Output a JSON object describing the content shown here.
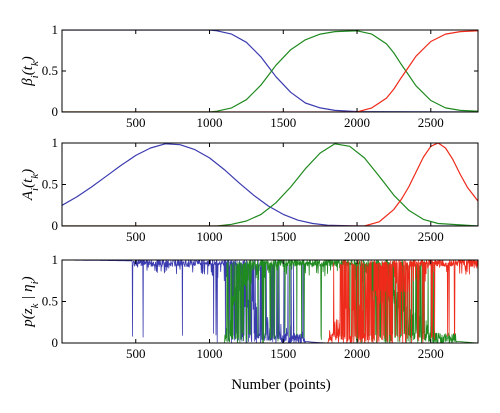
{
  "colors": {
    "series_1": "#3b3bb0",
    "series_2": "#1f8a1f",
    "series_3": "#ee2a1a"
  },
  "chart_data": [
    {
      "type": "line",
      "ylabel": "β_i(t_k)",
      "xlim": [
        0,
        2820
      ],
      "ylim": [
        0,
        1
      ],
      "xticks": [
        500,
        1000,
        1500,
        2000,
        2500
      ],
      "xtick_labels": [
        "500",
        "1000",
        "1500",
        "2000",
        "2500"
      ],
      "yticks": [
        0,
        0.5,
        1
      ],
      "ytick_labels": [
        "0",
        "0.5",
        "1"
      ],
      "series": [
        {
          "color": "series_1",
          "x": [
            0,
            1000,
            1050,
            1150,
            1250,
            1350,
            1400,
            1450,
            1550,
            1650,
            1750,
            1850,
            2000,
            2820
          ],
          "y": [
            1,
            1,
            0.99,
            0.95,
            0.85,
            0.67,
            0.55,
            0.43,
            0.24,
            0.11,
            0.05,
            0.02,
            0.005,
            0
          ]
        },
        {
          "color": "series_2",
          "x": [
            0,
            1000,
            1050,
            1150,
            1250,
            1350,
            1400,
            1450,
            1550,
            1650,
            1750,
            1850,
            2000,
            2100,
            2200,
            2250,
            2300,
            2350,
            2400,
            2500,
            2600,
            2700,
            2820
          ],
          "y": [
            0,
            0,
            0.01,
            0.05,
            0.15,
            0.33,
            0.45,
            0.57,
            0.76,
            0.88,
            0.95,
            0.98,
            0.99,
            0.95,
            0.83,
            0.72,
            0.58,
            0.45,
            0.32,
            0.14,
            0.05,
            0.02,
            0.01
          ]
        },
        {
          "color": "series_3",
          "x": [
            0,
            2000,
            2100,
            2200,
            2250,
            2300,
            2350,
            2400,
            2500,
            2600,
            2700,
            2820
          ],
          "y": [
            0,
            0,
            0.05,
            0.17,
            0.28,
            0.42,
            0.55,
            0.68,
            0.86,
            0.95,
            0.98,
            0.99
          ]
        }
      ]
    },
    {
      "type": "line",
      "ylabel": "A_i(t_k)",
      "xlim": [
        0,
        2820
      ],
      "ylim": [
        0,
        1
      ],
      "xticks": [
        500,
        1000,
        1500,
        2000,
        2500
      ],
      "xtick_labels": [
        "500",
        "1000",
        "1500",
        "2000",
        "2500"
      ],
      "yticks": [
        0,
        0.5,
        1
      ],
      "ytick_labels": [
        "0",
        "0.5",
        "1"
      ],
      "series": [
        {
          "color": "series_1",
          "x": [
            0,
            100,
            200,
            300,
            400,
            500,
            600,
            700,
            800,
            900,
            1000,
            1100,
            1200,
            1300,
            1400,
            1500,
            1600,
            1700,
            1800,
            2000,
            2820
          ],
          "y": [
            0.25,
            0.35,
            0.47,
            0.6,
            0.73,
            0.85,
            0.94,
            0.99,
            0.98,
            0.92,
            0.82,
            0.68,
            0.52,
            0.37,
            0.24,
            0.14,
            0.07,
            0.03,
            0.01,
            0,
            0
          ]
        },
        {
          "color": "series_2",
          "x": [
            0,
            1050,
            1150,
            1250,
            1350,
            1450,
            1550,
            1650,
            1750,
            1850,
            1950,
            2050,
            2150,
            2250,
            2350,
            2450,
            2550,
            2820
          ],
          "y": [
            0,
            0,
            0.02,
            0.06,
            0.14,
            0.28,
            0.47,
            0.69,
            0.88,
            0.99,
            0.96,
            0.82,
            0.6,
            0.37,
            0.19,
            0.08,
            0.03,
            0
          ]
        },
        {
          "color": "series_3",
          "x": [
            0,
            2050,
            2150,
            2250,
            2300,
            2350,
            2400,
            2450,
            2500,
            2550,
            2600,
            2650,
            2700,
            2750,
            2820
          ],
          "y": [
            0,
            0,
            0.05,
            0.2,
            0.32,
            0.47,
            0.65,
            0.83,
            0.96,
            1.0,
            0.94,
            0.8,
            0.62,
            0.46,
            0.3
          ]
        }
      ]
    },
    {
      "type": "line",
      "ylabel": "p(z_k | η_i)",
      "xlabel": "Number (points)",
      "xlim": [
        0,
        2820
      ],
      "ylim": [
        0,
        1
      ],
      "xticks": [
        500,
        1000,
        1500,
        2000,
        2500
      ],
      "xtick_labels": [
        "500",
        "1000",
        "1500",
        "2000",
        "2500"
      ],
      "yticks": [
        0,
        0.5,
        1
      ],
      "ytick_labels": [
        "0",
        "0.5",
        "1"
      ],
      "series": [
        {
          "color": "series_1",
          "x": [
            0,
            950,
            1000,
            1050,
            1100,
            1150,
            1200,
            1250,
            1300,
            1350,
            1400,
            1450,
            1500,
            1550,
            1600,
            1700,
            1800,
            1900,
            2000,
            2820
          ],
          "y": [
            1,
            0.98,
            0.96,
            0.93,
            0.9,
            0.82,
            0.7,
            0.55,
            0.42,
            0.3,
            0.22,
            0.15,
            0.1,
            0.06,
            0.03,
            0.01,
            0,
            0,
            0,
            0
          ]
        },
        {
          "color": "series_2",
          "x": [
            0,
            1100,
            1150,
            1200,
            1250,
            1300,
            1400,
            1500,
            1600,
            1700,
            1800,
            1900,
            2000,
            2100,
            2200,
            2300,
            2400,
            2500,
            2600,
            2820
          ],
          "y": [
            0,
            0,
            0.5,
            0.7,
            0.82,
            0.88,
            0.92,
            0.94,
            0.95,
            0.95,
            0.95,
            0.94,
            0.9,
            0.78,
            0.62,
            0.45,
            0.3,
            0.12,
            0.03,
            0
          ]
        },
        {
          "color": "series_3",
          "x": [
            0,
            1800,
            1900,
            2000,
            2100,
            2200,
            2300,
            2400,
            2500,
            2600,
            2700,
            2820
          ],
          "y": [
            0,
            0,
            0.3,
            0.45,
            0.55,
            0.62,
            0.72,
            0.82,
            0.9,
            0.95,
            0.97,
            0.98
          ]
        }
      ]
    }
  ]
}
